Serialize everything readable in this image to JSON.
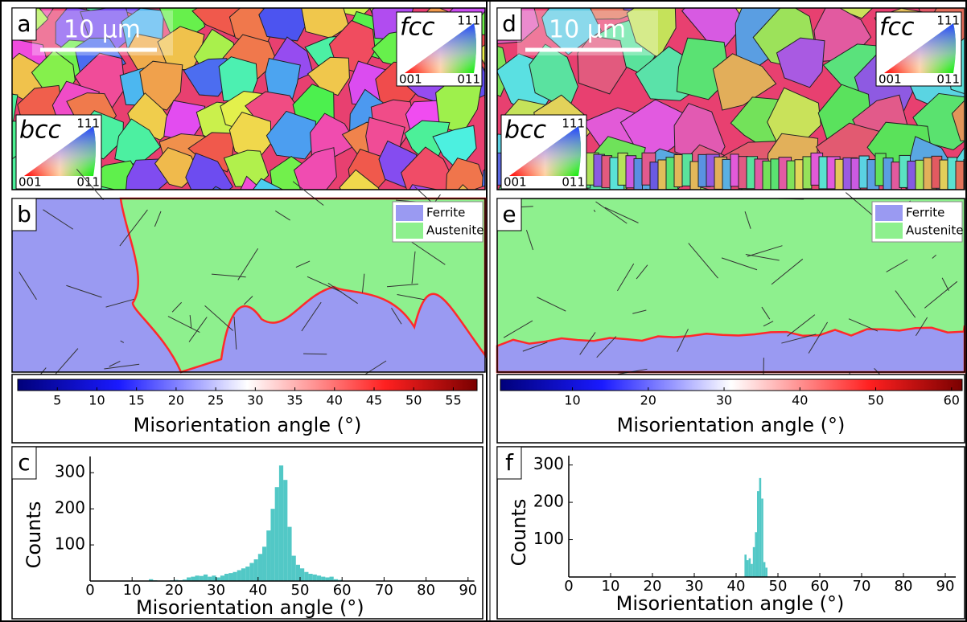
{
  "panel_labels": [
    "a",
    "b",
    "c",
    "d",
    "e",
    "f"
  ],
  "orientation_maps": [
    {
      "scale_bar": "10 µm",
      "ipf_keys": [
        {
          "phase": "fcc",
          "top": "111",
          "left": "001",
          "right": "011"
        },
        {
          "phase": "bcc",
          "top": "111",
          "left": "001",
          "right": "011"
        }
      ]
    },
    {
      "scale_bar": "10 µm",
      "ipf_keys": [
        {
          "phase": "fcc",
          "top": "111",
          "left": "001",
          "right": "011"
        },
        {
          "phase": "bcc",
          "top": "111",
          "left": "001",
          "right": "011"
        }
      ]
    }
  ],
  "phase_maps": [
    {
      "legend": [
        {
          "name": "Ferrite",
          "color": "#9a9af2"
        },
        {
          "name": "Austenite",
          "color": "#8ef08e"
        }
      ]
    },
    {
      "legend": [
        {
          "name": "Ferrite",
          "color": "#9a9af2"
        },
        {
          "name": "Austenite",
          "color": "#8ef08e"
        }
      ]
    }
  ],
  "colorbars": [
    {
      "label": "Misorientation angle (°)",
      "lim": [
        0,
        58
      ],
      "ticks": [
        5,
        10,
        15,
        20,
        25,
        30,
        35,
        40,
        45,
        50,
        55
      ]
    },
    {
      "label": "Misorientation angle (°)",
      "lim": [
        0.5,
        61.4
      ],
      "ticks": [
        10,
        20,
        30,
        40,
        50,
        60
      ]
    }
  ],
  "chart_data": [
    {
      "type": "histogram",
      "x_label": "Misorientation angle (°)",
      "y_label": "Counts",
      "color": "#52c8c6",
      "bins": [
        14,
        15,
        16,
        17,
        18,
        19,
        20,
        21,
        22,
        23,
        24,
        25,
        26,
        27,
        28,
        29,
        30,
        31,
        32,
        33,
        34,
        35,
        36,
        37,
        38,
        39,
        40,
        41,
        42,
        43,
        44,
        45,
        46,
        47,
        48,
        49,
        50,
        51,
        52,
        53,
        54,
        55,
        56,
        57,
        58,
        59,
        60
      ],
      "values": [
        5,
        2,
        0,
        0,
        0,
        2,
        3,
        2,
        4,
        10,
        12,
        15,
        14,
        18,
        12,
        15,
        10,
        15,
        20,
        22,
        25,
        30,
        35,
        40,
        50,
        60,
        75,
        95,
        140,
        200,
        260,
        320,
        280,
        150,
        70,
        45,
        35,
        25,
        20,
        18,
        15,
        12,
        10,
        12,
        5,
        3
      ],
      "xlim": [
        0,
        91.5
      ],
      "xticks": [
        0,
        10,
        20,
        30,
        40,
        50,
        60,
        70,
        80,
        90
      ],
      "ylim": [
        0,
        345
      ],
      "yticks": [
        100,
        200,
        300
      ]
    },
    {
      "type": "histogram",
      "x_label": "Misorientation angle (°)",
      "y_label": "Counts",
      "color": "#52c8c6",
      "bins": [
        42,
        42.5,
        43,
        43.5,
        44,
        44.5,
        45,
        45.5,
        46,
        46.5,
        47,
        47.5
      ],
      "values": [
        60,
        45,
        50,
        35,
        80,
        120,
        230,
        265,
        210,
        40,
        25
      ],
      "xlim": [
        0,
        92.5
      ],
      "xticks": [
        0,
        10,
        20,
        30,
        40,
        50,
        60,
        70,
        80,
        90
      ],
      "ylim": [
        0,
        325
      ],
      "yticks": [
        100,
        200,
        300
      ]
    }
  ]
}
